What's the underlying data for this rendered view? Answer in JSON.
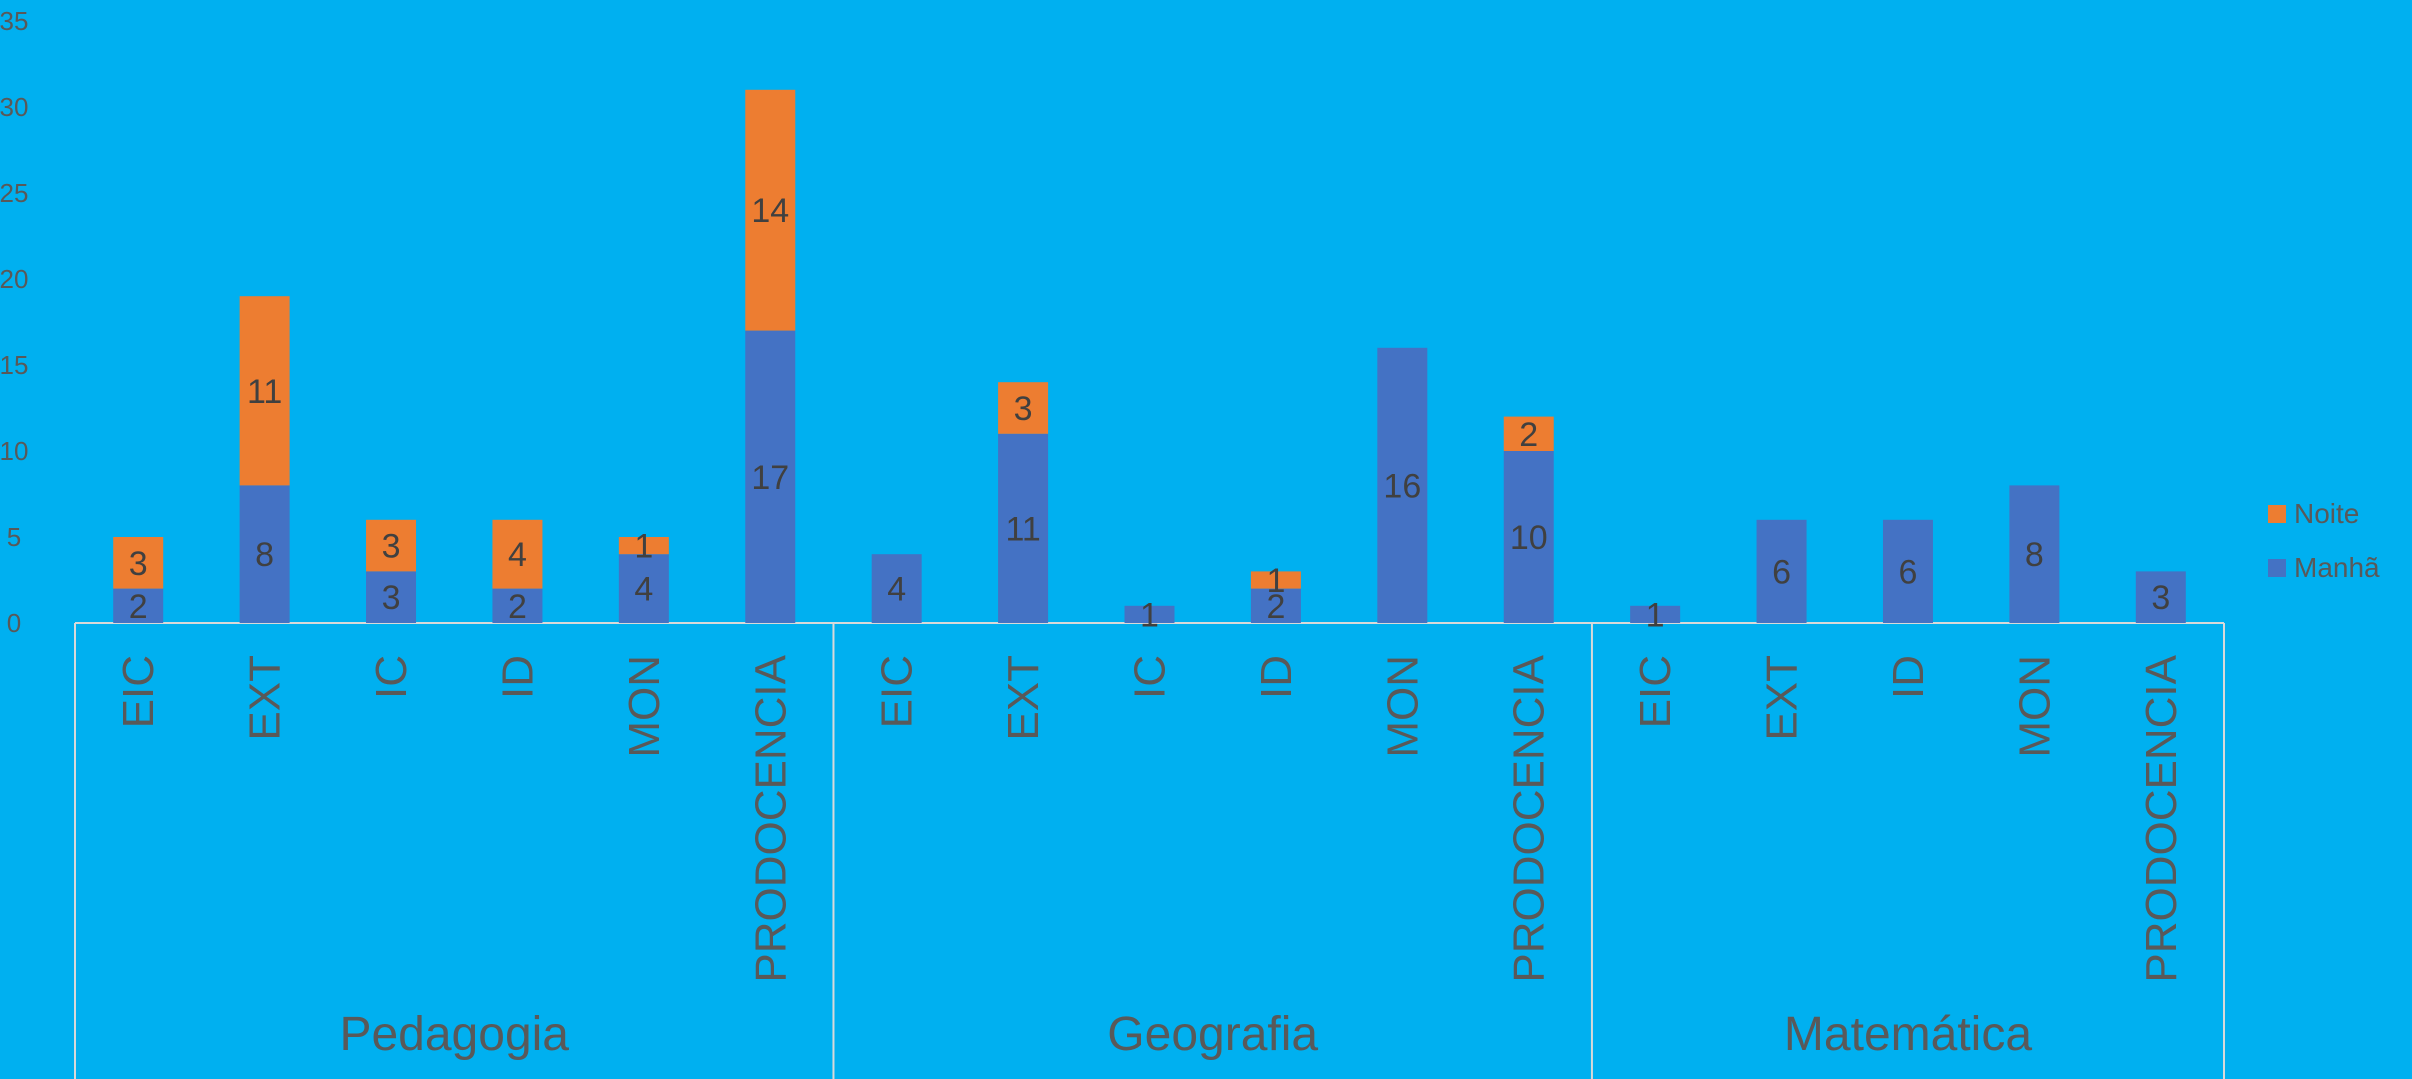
{
  "chart_data": {
    "type": "bar",
    "stacked": true,
    "title": "",
    "xlabel": "",
    "ylabel": "",
    "ylim": [
      0,
      35
    ],
    "yticks": [
      0,
      5,
      10,
      15,
      20,
      25,
      30,
      35
    ],
    "grid": false,
    "legend_position": "right",
    "groups": [
      {
        "name": "Pedagogia",
        "categories": [
          "EIC",
          "EXT",
          "IC",
          "ID",
          "MON",
          "PRODOCENCIA"
        ]
      },
      {
        "name": "Geografia",
        "categories": [
          "EIC",
          "EXT",
          "IC",
          "ID",
          "MON",
          "PRODOCENCIA"
        ]
      },
      {
        "name": "Matemática",
        "categories": [
          "EIC",
          "EXT",
          "ID",
          "MON",
          "PRODOCENCIA"
        ]
      }
    ],
    "series": [
      {
        "name": "Manhã",
        "color": "#4472C4",
        "values": [
          2,
          8,
          3,
          2,
          4,
          17,
          4,
          11,
          1,
          2,
          16,
          10,
          1,
          6,
          6,
          8,
          3
        ]
      },
      {
        "name": "Noite",
        "color": "#ED7D31",
        "values": [
          3,
          11,
          3,
          4,
          1,
          14,
          0,
          3,
          0,
          1,
          0,
          2,
          0,
          0,
          0,
          0,
          0
        ]
      }
    ],
    "legend_order": [
      "Noite",
      "Manhã"
    ]
  },
  "colors": {
    "background": "#00B0F0",
    "axis_line": "#D9D9D9",
    "text": "#595959"
  }
}
